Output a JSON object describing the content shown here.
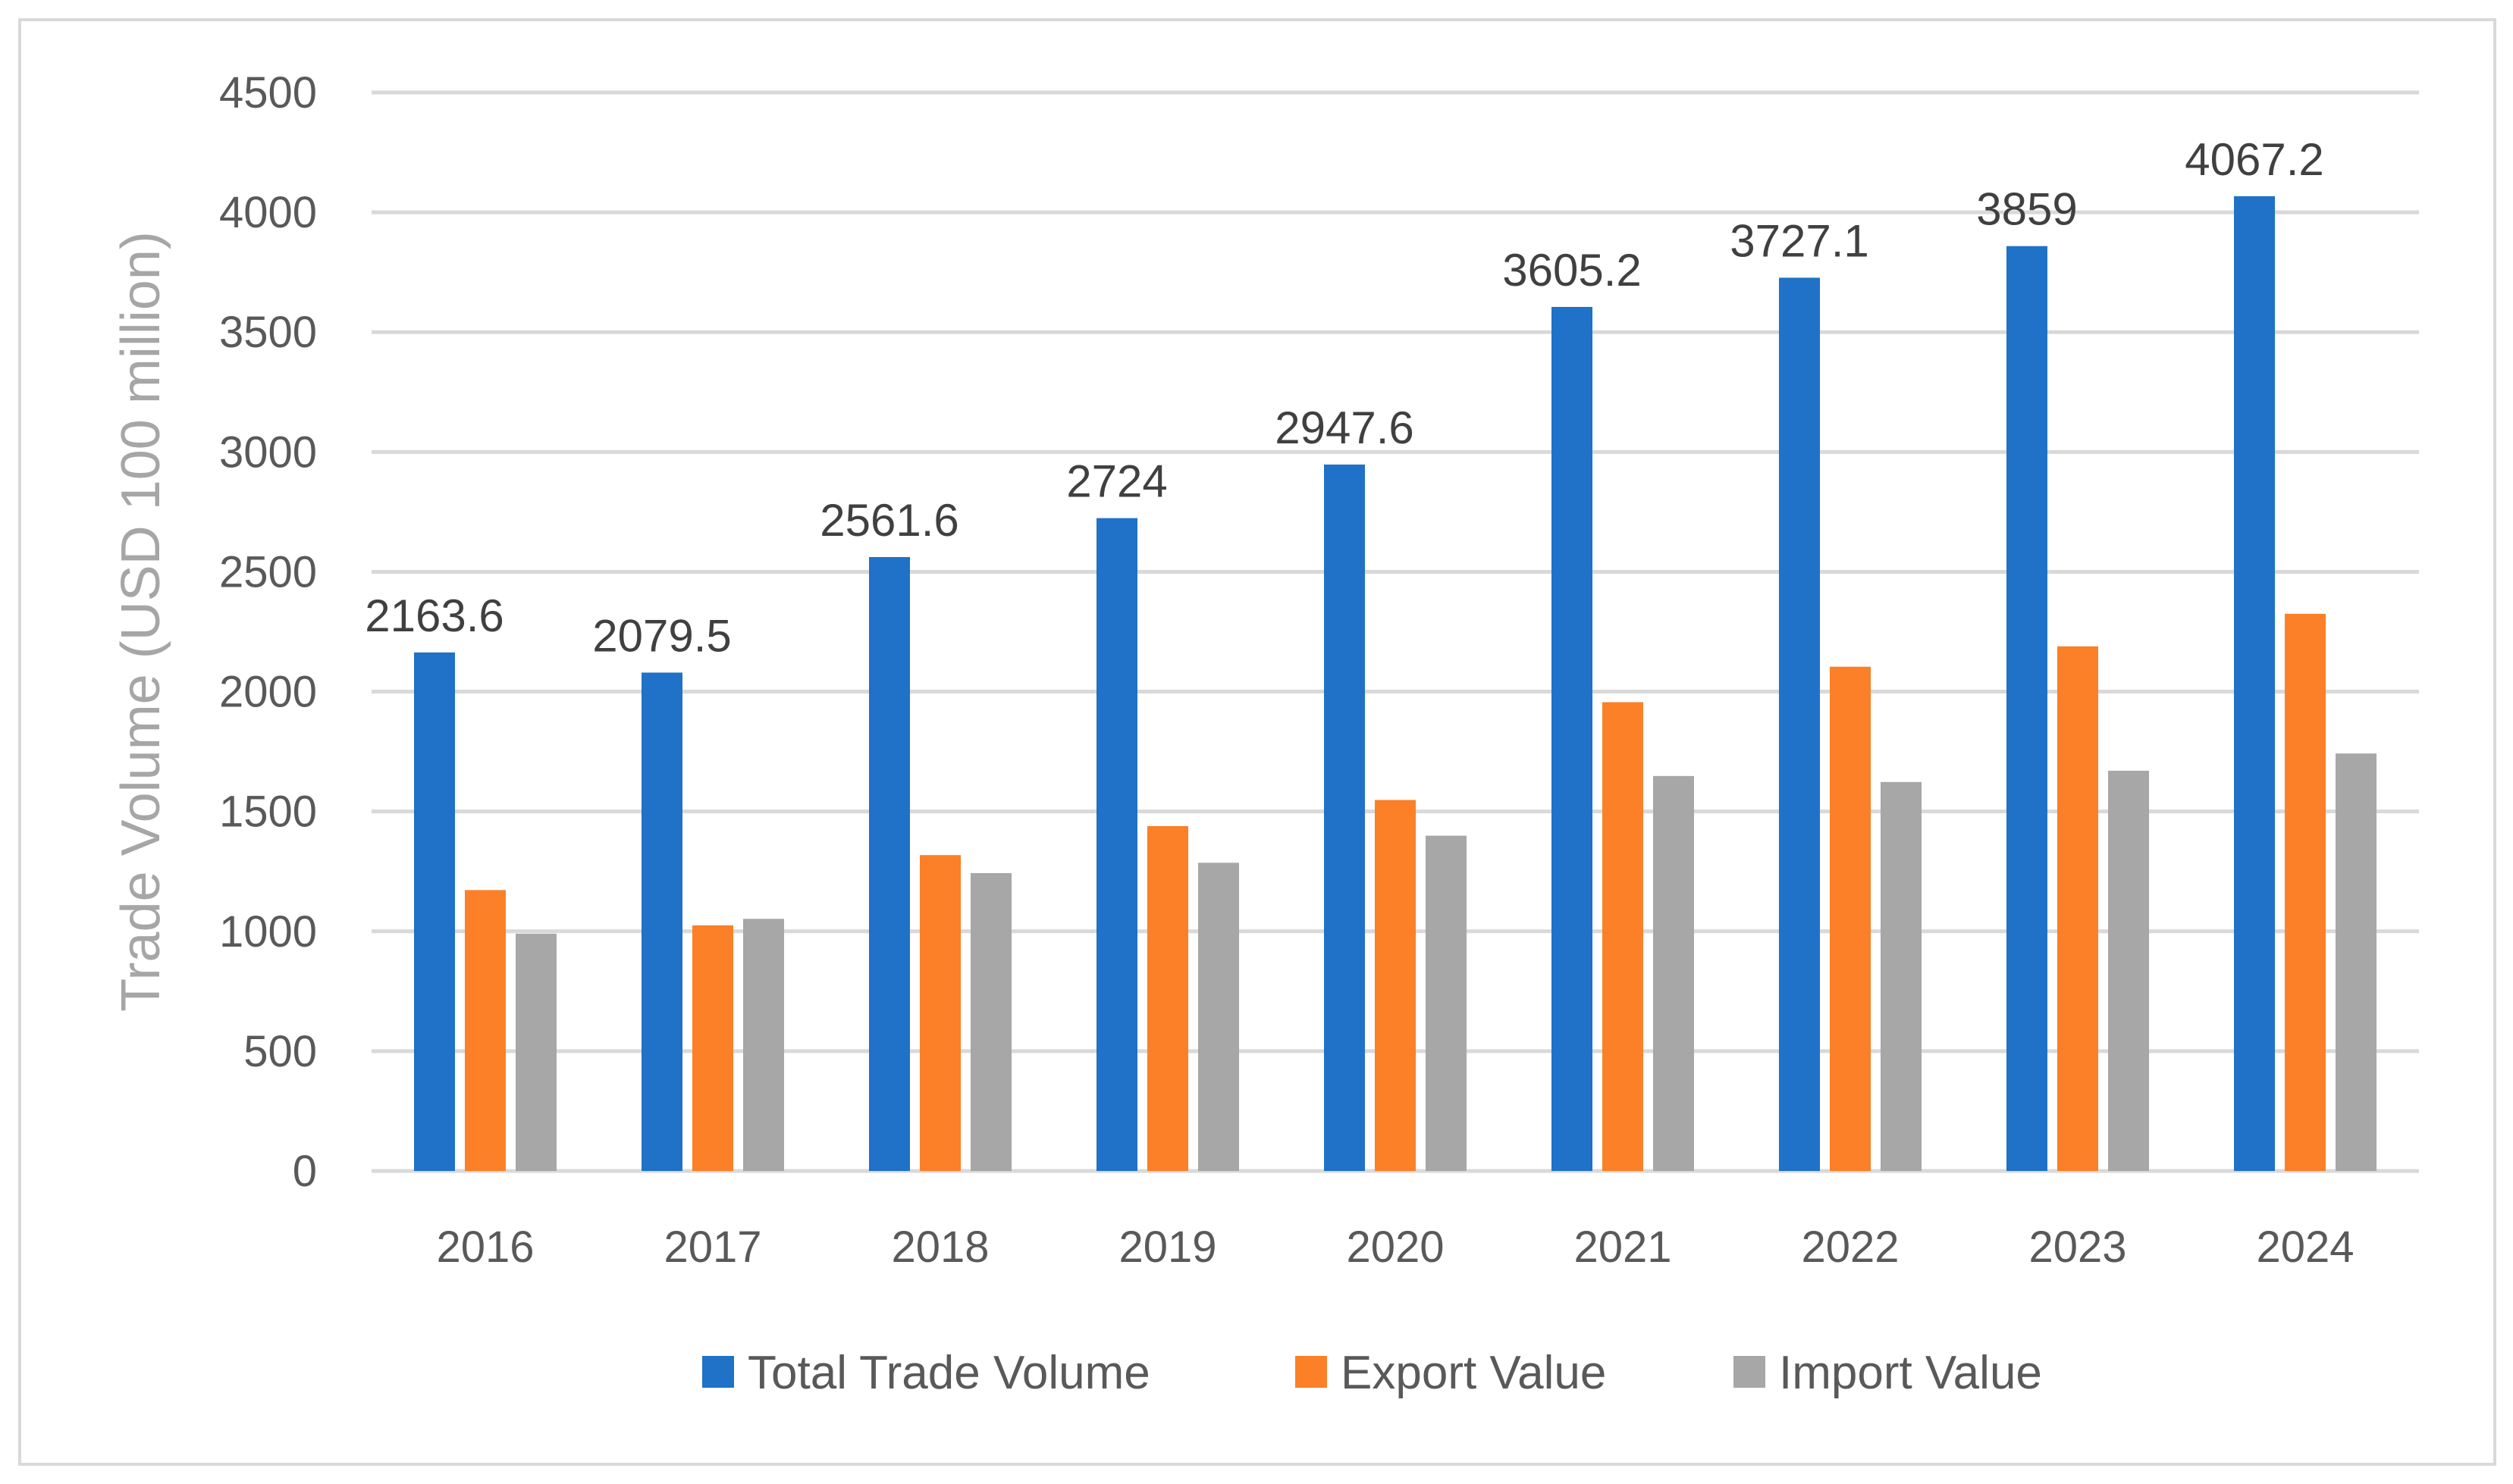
{
  "chart_data": {
    "type": "bar",
    "title": "",
    "xlabel": "",
    "ylabel": "Trade Volume (USD 100 million)",
    "ylim": [
      0,
      4500
    ],
    "yticks": [
      0,
      500,
      1000,
      1500,
      2000,
      2500,
      3000,
      3500,
      4000,
      4500
    ],
    "grid": true,
    "legend_position": "bottom",
    "categories": [
      "2016",
      "2017",
      "2018",
      "2019",
      "2020",
      "2021",
      "2022",
      "2023",
      "2024"
    ],
    "series": [
      {
        "name": "Total Trade Volume",
        "color": "#1f72c7",
        "values": [
          2163.6,
          2079.5,
          2561.6,
          2724,
          2947.6,
          3605.2,
          3727.1,
          3859,
          4067.2
        ],
        "data_labels": [
          "2163.6",
          "2079.5",
          "2561.6",
          "2724",
          "2947.6",
          "3605.2",
          "3727.1",
          "3859",
          "4067.2"
        ]
      },
      {
        "name": "Export Value",
        "color": "#fb8027",
        "values": [
          1172,
          1025,
          1318,
          1439,
          1548,
          1956,
          2104,
          2189,
          2325
        ]
      },
      {
        "name": "Import Value",
        "color": "#a7a7a7",
        "values": [
          990,
          1052,
          1243,
          1286,
          1399,
          1648,
          1623,
          1670,
          1742
        ]
      }
    ]
  }
}
